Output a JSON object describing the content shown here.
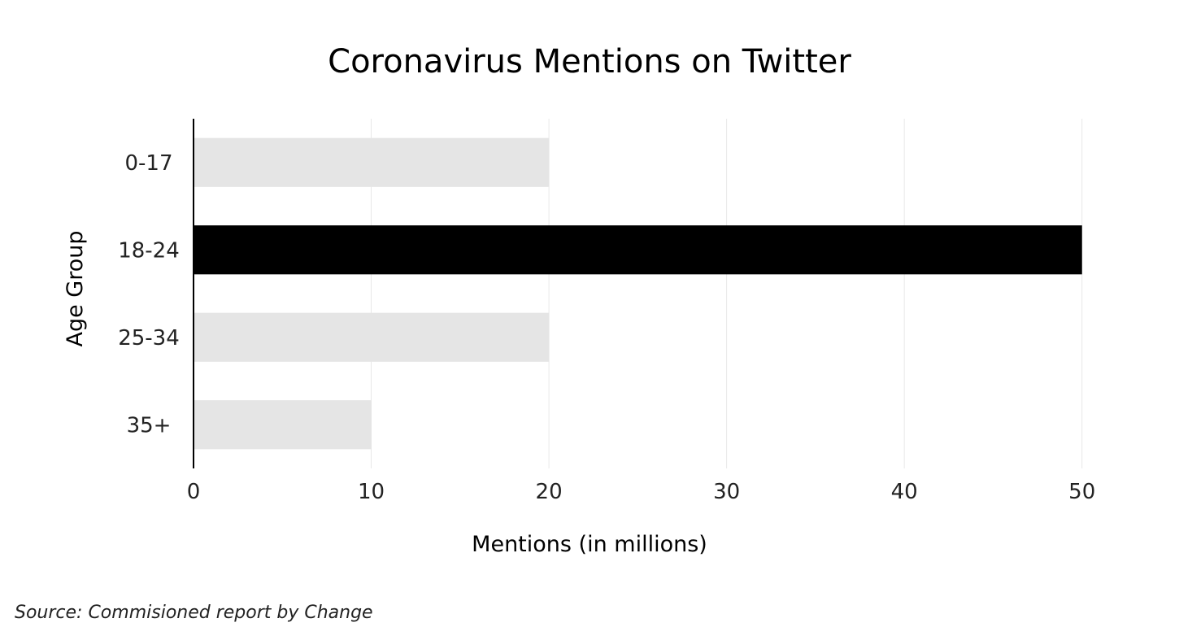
{
  "chart_data": {
    "type": "bar",
    "orientation": "horizontal",
    "title": "Coronavirus Mentions on Twitter",
    "xlabel": "Mentions (in millions)",
    "ylabel": "Age Group",
    "categories": [
      "0-17",
      "18-24",
      "25-34",
      "35+"
    ],
    "values": [
      20,
      50,
      20,
      10
    ],
    "highlight_index": 1,
    "xlim": [
      0,
      55
    ],
    "xticks": [
      0,
      10,
      20,
      30,
      40,
      50
    ],
    "grid": "vertical",
    "legend": "none",
    "colors": {
      "default": "#e5e5e5",
      "highlight": "#000000",
      "grid": "#e8e8e8",
      "axis": "#000000"
    },
    "source": "Source: Commisioned report by Change"
  }
}
